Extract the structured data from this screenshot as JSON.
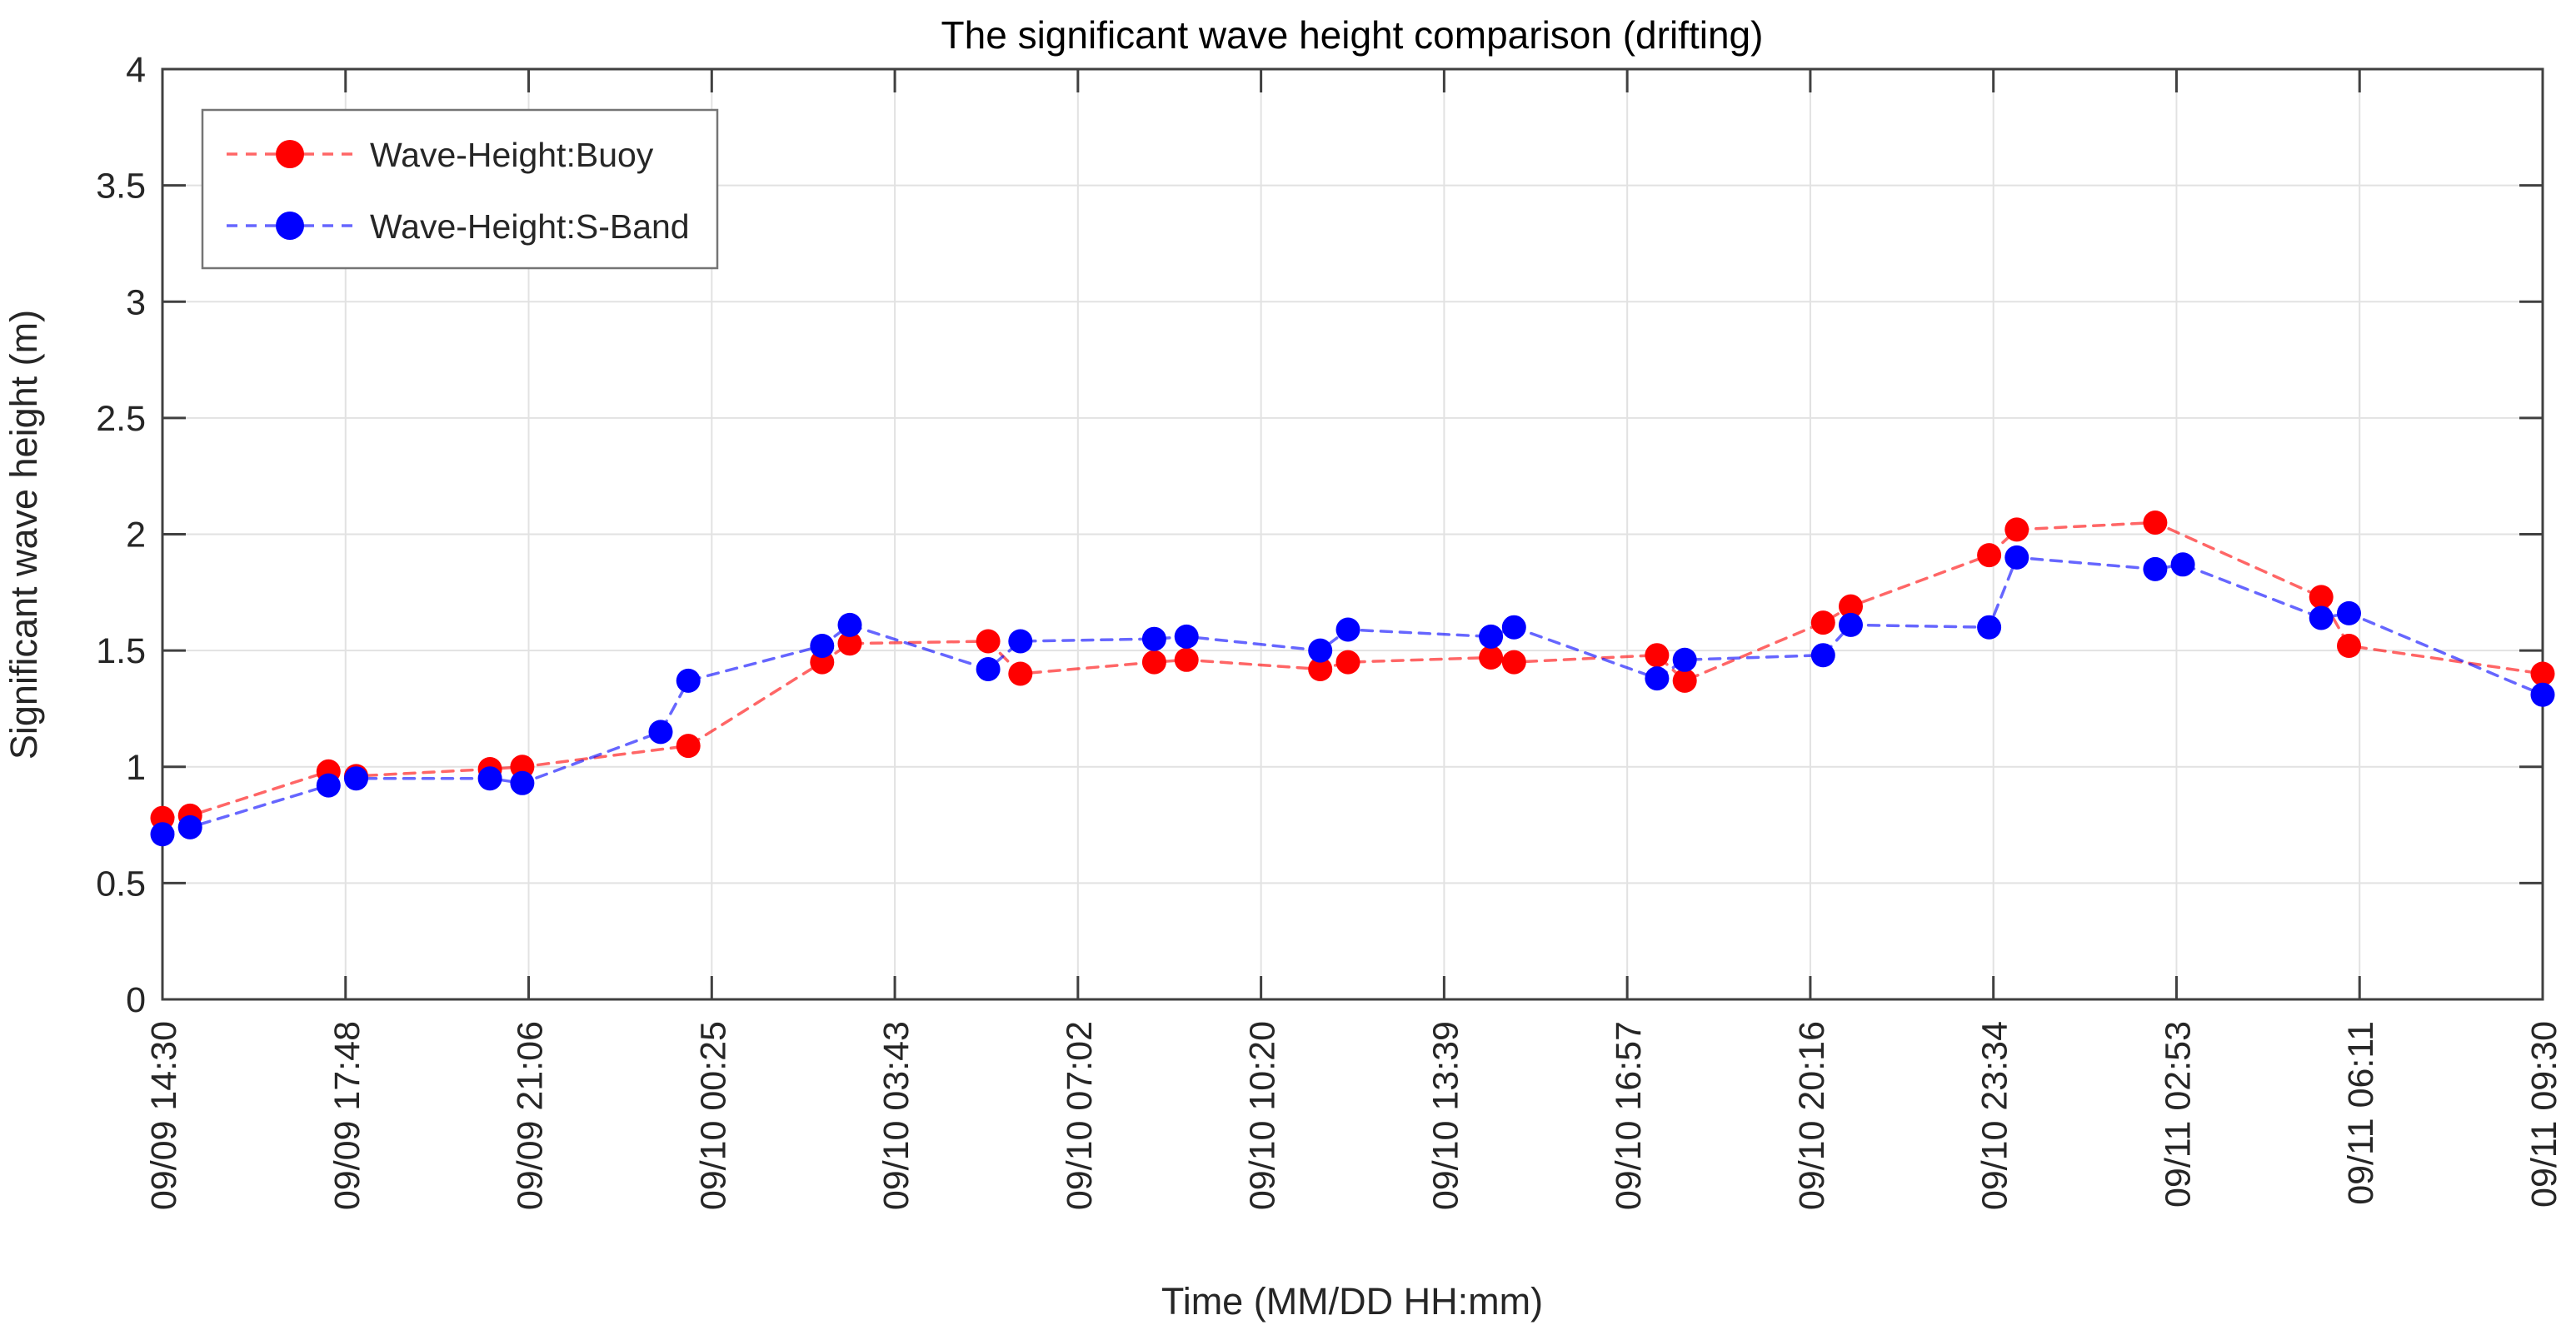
{
  "chart": {
    "title": "The significant wave height comparison (drifting)",
    "xlabel": "Time (MM/DD HH:mm)",
    "ylabel": "Significant wave height (m)"
  },
  "chart_data": {
    "type": "line",
    "title": "The significant wave height comparison (drifting)",
    "xlabel": "Time (MM/DD HH:mm)",
    "ylabel": "Significant wave height (m)",
    "ylim": [
      0,
      4
    ],
    "ytick_labels": [
      "0",
      "0.5",
      "1",
      "1.5",
      "2",
      "2.5",
      "3",
      "3.5",
      "4"
    ],
    "yticks": [
      0,
      0.5,
      1,
      1.5,
      2,
      2.5,
      3,
      3.5,
      4
    ],
    "xtick_labels": [
      "09/09 14:30",
      "09/09 17:48",
      "09/09 21:06",
      "09/10 00:25",
      "09/10 03:43",
      "09/10 07:02",
      "09/10 10:20",
      "09/10 13:39",
      "09/10 16:57",
      "09/10 20:16",
      "09/10 23:34",
      "09/11 02:53",
      "09/11 06:11",
      "09/11 09:30"
    ],
    "x_minutes_range": [
      0,
      2580
    ],
    "grid": true,
    "legend_position": "top-left",
    "line_style": "dashed",
    "marker": "circle",
    "colors": {
      "buoy": "#ff0000",
      "sband": "#0000ff",
      "buoy_line": "rgba(255,0,0,0.60)",
      "sband_line": "rgba(0,0,255,0.60)",
      "axis": "#404040",
      "grid": "#e2e2e2",
      "legend_border": "#757575"
    },
    "series": [
      {
        "name": "Wave-Height:Buoy",
        "color": "#ff0000",
        "line_color": "rgba(255,0,0,0.60)",
        "points": [
          {
            "t": "09/09 14:30",
            "m": 0,
            "v": 0.78
          },
          {
            "t": "09/09 15:00",
            "m": 30,
            "v": 0.79
          },
          {
            "t": "09/09 17:30",
            "m": 180,
            "v": 0.98
          },
          {
            "t": "09/09 18:00",
            "m": 210,
            "v": 0.96
          },
          {
            "t": "09/09 20:25",
            "m": 355,
            "v": 0.99
          },
          {
            "t": "09/09 21:00",
            "m": 390,
            "v": 1.0
          },
          {
            "t": "09/10 00:00",
            "m": 570,
            "v": 1.09
          },
          {
            "t": "09/10 02:25",
            "m": 715,
            "v": 1.45
          },
          {
            "t": "09/10 02:55",
            "m": 745,
            "v": 1.53
          },
          {
            "t": "09/10 05:25",
            "m": 895,
            "v": 1.54
          },
          {
            "t": "09/10 06:00",
            "m": 930,
            "v": 1.4
          },
          {
            "t": "09/10 08:25",
            "m": 1075,
            "v": 1.45
          },
          {
            "t": "09/10 09:00",
            "m": 1110,
            "v": 1.46
          },
          {
            "t": "09/10 11:25",
            "m": 1255,
            "v": 1.42
          },
          {
            "t": "09/10 11:55",
            "m": 1285,
            "v": 1.45
          },
          {
            "t": "09/10 14:30",
            "m": 1440,
            "v": 1.47
          },
          {
            "t": "09/10 14:55",
            "m": 1465,
            "v": 1.45
          },
          {
            "t": "09/10 17:30",
            "m": 1620,
            "v": 1.48
          },
          {
            "t": "09/10 18:00",
            "m": 1650,
            "v": 1.37
          },
          {
            "t": "09/10 20:30",
            "m": 1800,
            "v": 1.62
          },
          {
            "t": "09/10 21:00",
            "m": 1830,
            "v": 1.69
          },
          {
            "t": "09/10 23:30",
            "m": 1980,
            "v": 1.91
          },
          {
            "t": "09/11 00:00",
            "m": 2010,
            "v": 2.02
          },
          {
            "t": "09/11 02:30",
            "m": 2160,
            "v": 2.05
          },
          {
            "t": "09/11 05:30",
            "m": 2340,
            "v": 1.73
          },
          {
            "t": "09/11 06:00",
            "m": 2370,
            "v": 1.52
          },
          {
            "t": "09/11 09:30",
            "m": 2580,
            "v": 1.4
          }
        ]
      },
      {
        "name": "Wave-Height:S-Band",
        "color": "#0000ff",
        "line_color": "rgba(0,0,255,0.60)",
        "points": [
          {
            "t": "09/09 14:30",
            "m": 0,
            "v": 0.71
          },
          {
            "t": "09/09 15:00",
            "m": 30,
            "v": 0.74
          },
          {
            "t": "09/09 17:30",
            "m": 180,
            "v": 0.92
          },
          {
            "t": "09/09 18:00",
            "m": 210,
            "v": 0.95
          },
          {
            "t": "09/09 20:25",
            "m": 355,
            "v": 0.95
          },
          {
            "t": "09/09 21:00",
            "m": 390,
            "v": 0.93
          },
          {
            "t": "09/09 23:30",
            "m": 540,
            "v": 1.15
          },
          {
            "t": "09/10 00:00",
            "m": 570,
            "v": 1.37
          },
          {
            "t": "09/10 02:25",
            "m": 715,
            "v": 1.52
          },
          {
            "t": "09/10 02:55",
            "m": 745,
            "v": 1.61
          },
          {
            "t": "09/10 05:25",
            "m": 895,
            "v": 1.42
          },
          {
            "t": "09/10 06:00",
            "m": 930,
            "v": 1.54
          },
          {
            "t": "09/10 08:25",
            "m": 1075,
            "v": 1.55
          },
          {
            "t": "09/10 09:00",
            "m": 1110,
            "v": 1.56
          },
          {
            "t": "09/10 11:25",
            "m": 1255,
            "v": 1.5
          },
          {
            "t": "09/10 11:55",
            "m": 1285,
            "v": 1.59
          },
          {
            "t": "09/10 14:30",
            "m": 1440,
            "v": 1.56
          },
          {
            "t": "09/10 14:55",
            "m": 1465,
            "v": 1.6
          },
          {
            "t": "09/10 17:30",
            "m": 1620,
            "v": 1.38
          },
          {
            "t": "09/10 18:00",
            "m": 1650,
            "v": 1.46
          },
          {
            "t": "09/10 20:30",
            "m": 1800,
            "v": 1.48
          },
          {
            "t": "09/10 21:00",
            "m": 1830,
            "v": 1.61
          },
          {
            "t": "09/10 23:30",
            "m": 1980,
            "v": 1.6
          },
          {
            "t": "09/11 00:00",
            "m": 2010,
            "v": 1.9
          },
          {
            "t": "09/11 02:30",
            "m": 2160,
            "v": 1.85
          },
          {
            "t": "09/11 03:00",
            "m": 2190,
            "v": 1.87
          },
          {
            "t": "09/11 05:30",
            "m": 2340,
            "v": 1.64
          },
          {
            "t": "09/11 06:00",
            "m": 2370,
            "v": 1.66
          },
          {
            "t": "09/11 09:30",
            "m": 2580,
            "v": 1.31
          }
        ]
      }
    ]
  }
}
